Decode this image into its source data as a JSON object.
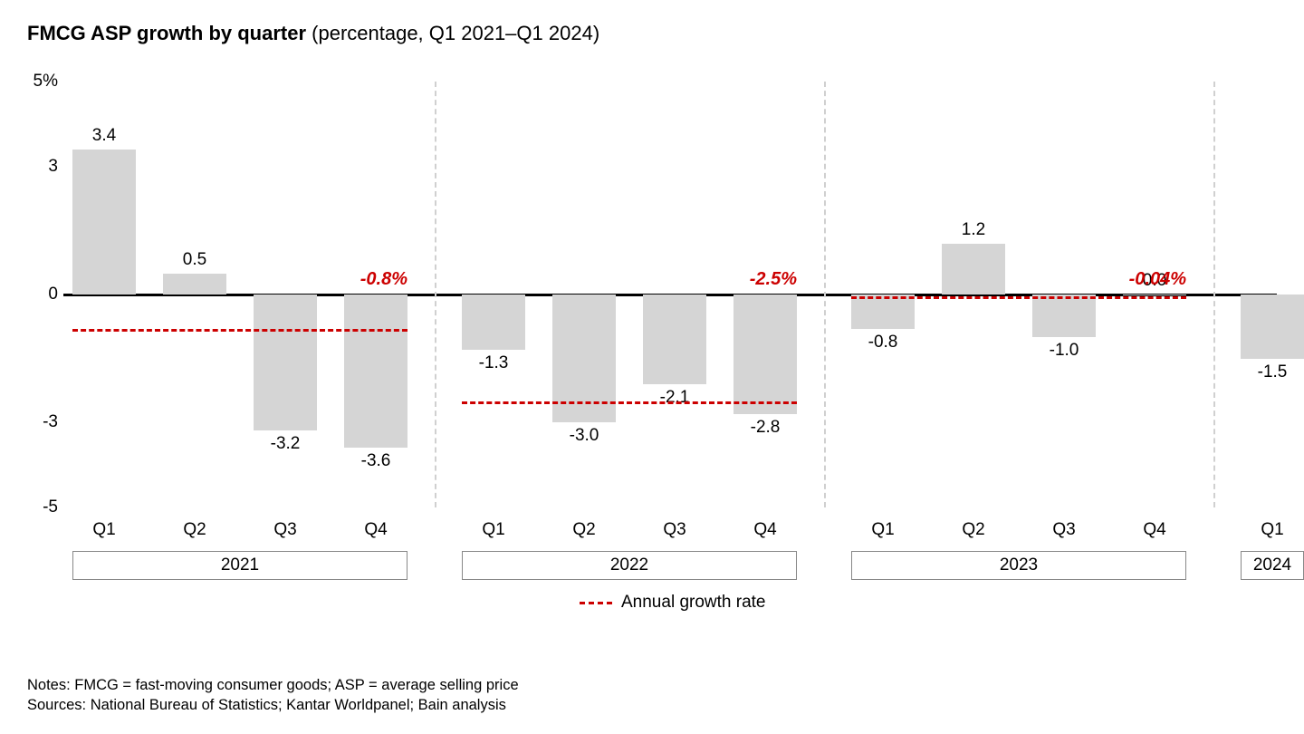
{
  "title_bold": "FMCG ASP growth by quarter",
  "title_rest": " (percentage, Q1 2021–Q1 2024)",
  "chart": {
    "type": "bar",
    "y": {
      "min": -5,
      "max": 5,
      "ticks": [
        5,
        3,
        0,
        -3,
        -5
      ],
      "tick_labels": [
        "5%",
        "3",
        "0",
        "-3",
        "-5"
      ]
    },
    "bar_color": "#d5d5d5",
    "zero_line_color": "#000000",
    "separator_color": "#d0d0d0",
    "annual_line_color": "#cc0000",
    "bars": [
      {
        "q": "Q1",
        "year": "2021",
        "v": 3.4,
        "label": "3.4"
      },
      {
        "q": "Q2",
        "year": "2021",
        "v": 0.5,
        "label": "0.5"
      },
      {
        "q": "Q3",
        "year": "2021",
        "v": -3.2,
        "label": "-3.2"
      },
      {
        "q": "Q4",
        "year": "2021",
        "v": -3.6,
        "label": "-3.6"
      },
      {
        "q": "Q1",
        "year": "2022",
        "v": -1.3,
        "label": "-1.3"
      },
      {
        "q": "Q2",
        "year": "2022",
        "v": -3.0,
        "label": "-3.0"
      },
      {
        "q": "Q3",
        "year": "2022",
        "v": -2.1,
        "label": "-2.1"
      },
      {
        "q": "Q4",
        "year": "2022",
        "v": -2.8,
        "label": "-2.8"
      },
      {
        "q": "Q1",
        "year": "2023",
        "v": -0.8,
        "label": "-0.8"
      },
      {
        "q": "Q2",
        "year": "2023",
        "v": 1.2,
        "label": "1.2"
      },
      {
        "q": "Q3",
        "year": "2023",
        "v": -1.0,
        "label": "-1.0"
      },
      {
        "q": "Q4",
        "year": "2023",
        "v": 0.0,
        "label": "0.0"
      },
      {
        "q": "Q1",
        "year": "2024",
        "v": -1.5,
        "label": "-1.5"
      }
    ],
    "annuals": [
      {
        "year": "2021",
        "v": -0.8,
        "label": "-0.8%"
      },
      {
        "year": "2022",
        "v": -2.5,
        "label": "-2.5%"
      },
      {
        "year": "2023",
        "v": -0.04,
        "label": "-0.04%"
      }
    ],
    "year_groups": [
      {
        "year": "2021",
        "count": 4
      },
      {
        "year": "2022",
        "count": 4
      },
      {
        "year": "2023",
        "count": 4
      },
      {
        "year": "2024",
        "count": 1
      }
    ],
    "legend_label": "Annual growth rate"
  },
  "notes": "Notes: FMCG = fast-moving consumer goods; ASP = average selling price",
  "sources": "Sources: National Bureau of Statistics; Kantar Worldpanel; Bain analysis"
}
